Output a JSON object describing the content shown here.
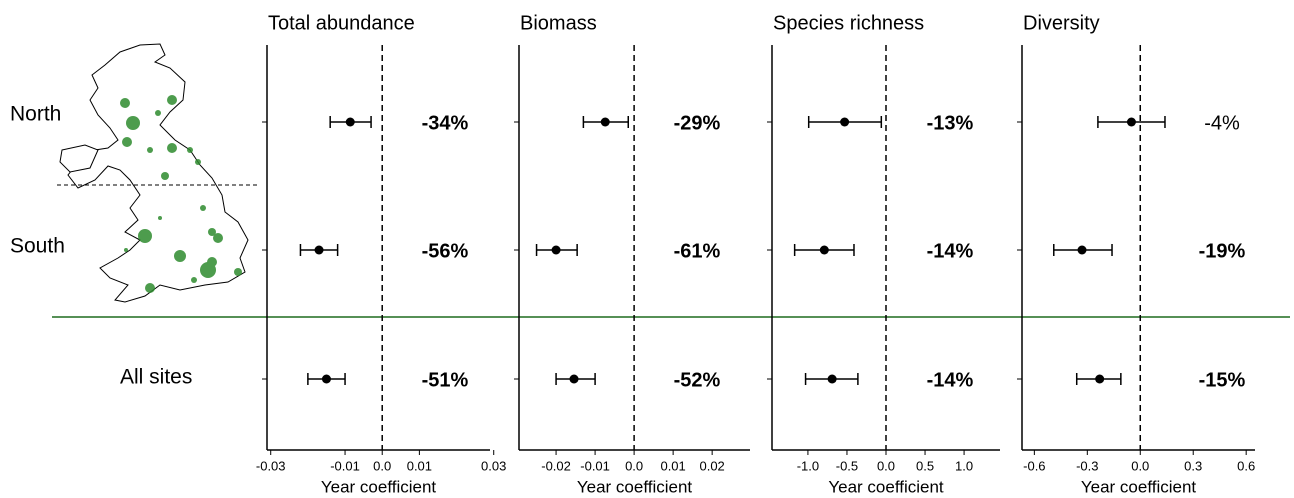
{
  "rows": [
    "North",
    "South",
    "All sites"
  ],
  "chart_data": [
    {
      "type": "forest",
      "title": "Total abundance",
      "xlabel": "Year coefficient",
      "color": "#000000",
      "zero_line": true,
      "values": [
        -0.0086,
        -0.017,
        -0.015
      ],
      "low": [
        -0.014,
        -0.022,
        -0.02
      ],
      "high": [
        -0.003,
        -0.012,
        -0.01
      ],
      "percent_change": [
        -34,
        -56,
        -51
      ],
      "percent_labels": [
        "-34%",
        "-56%",
        "-51%"
      ],
      "label_bold": [
        true,
        true,
        true
      ],
      "xlim": [
        -0.031,
        0.029
      ],
      "xticks": [
        -0.03,
        -0.01,
        {
          "value": 0,
          "label": "0.0"
        },
        0.01,
        0.03
      ]
    },
    {
      "type": "forest",
      "title": "Biomass",
      "xlabel": "Year coefficient",
      "color": "#000000",
      "zero_line": true,
      "values": [
        -0.0074,
        -0.02,
        -0.0154
      ],
      "low": [
        -0.013,
        -0.025,
        -0.02
      ],
      "high": [
        -0.0015,
        -0.0146,
        -0.01
      ],
      "percent_change": [
        -29,
        -61,
        -52
      ],
      "percent_labels": [
        "-29%",
        "-61%",
        "-52%"
      ],
      "label_bold": [
        true,
        true,
        true
      ],
      "xlim": [
        -0.0295,
        0.0297
      ],
      "xticks": [
        -0.02,
        -0.01,
        {
          "value": 0,
          "label": "0.0"
        },
        0.01,
        0.02
      ]
    },
    {
      "type": "forest",
      "title": "Species richness",
      "xlabel": "Year coefficient",
      "color": "#000000",
      "zero_line": true,
      "values": [
        -0.53,
        -0.79,
        -0.69
      ],
      "low": [
        -0.99,
        -1.17,
        -1.03
      ],
      "high": [
        -0.06,
        -0.41,
        -0.36
      ],
      "percent_change": [
        -13,
        -14,
        -14
      ],
      "percent_labels": [
        "-13%",
        "-14%",
        "-14%"
      ],
      "label_bold": [
        true,
        true,
        true
      ],
      "xlim": [
        -1.46,
        1.46
      ],
      "xticks": [
        {
          "value": -1,
          "label": "-1.0"
        },
        -0.5,
        {
          "value": 0,
          "label": "0.0"
        },
        0.5,
        {
          "value": 1,
          "label": "1.0"
        }
      ]
    },
    {
      "type": "forest",
      "title": "Diversity",
      "xlabel": "Year coefficient",
      "color": "#000000",
      "zero_line": true,
      "values": [
        -0.05,
        -0.33,
        -0.23
      ],
      "low": [
        -0.24,
        -0.49,
        -0.36
      ],
      "high": [
        0.14,
        -0.16,
        -0.11
      ],
      "percent_change": [
        -4,
        -19,
        -15
      ],
      "percent_labels": [
        "-4%",
        "-19%",
        "-15%"
      ],
      "label_bold": [
        false,
        true,
        true
      ],
      "xlim": [
        -0.67,
        0.65
      ],
      "xticks": [
        -0.6,
        -0.3,
        {
          "value": 0,
          "label": "0.0"
        },
        0.3,
        0.6
      ]
    }
  ]
}
